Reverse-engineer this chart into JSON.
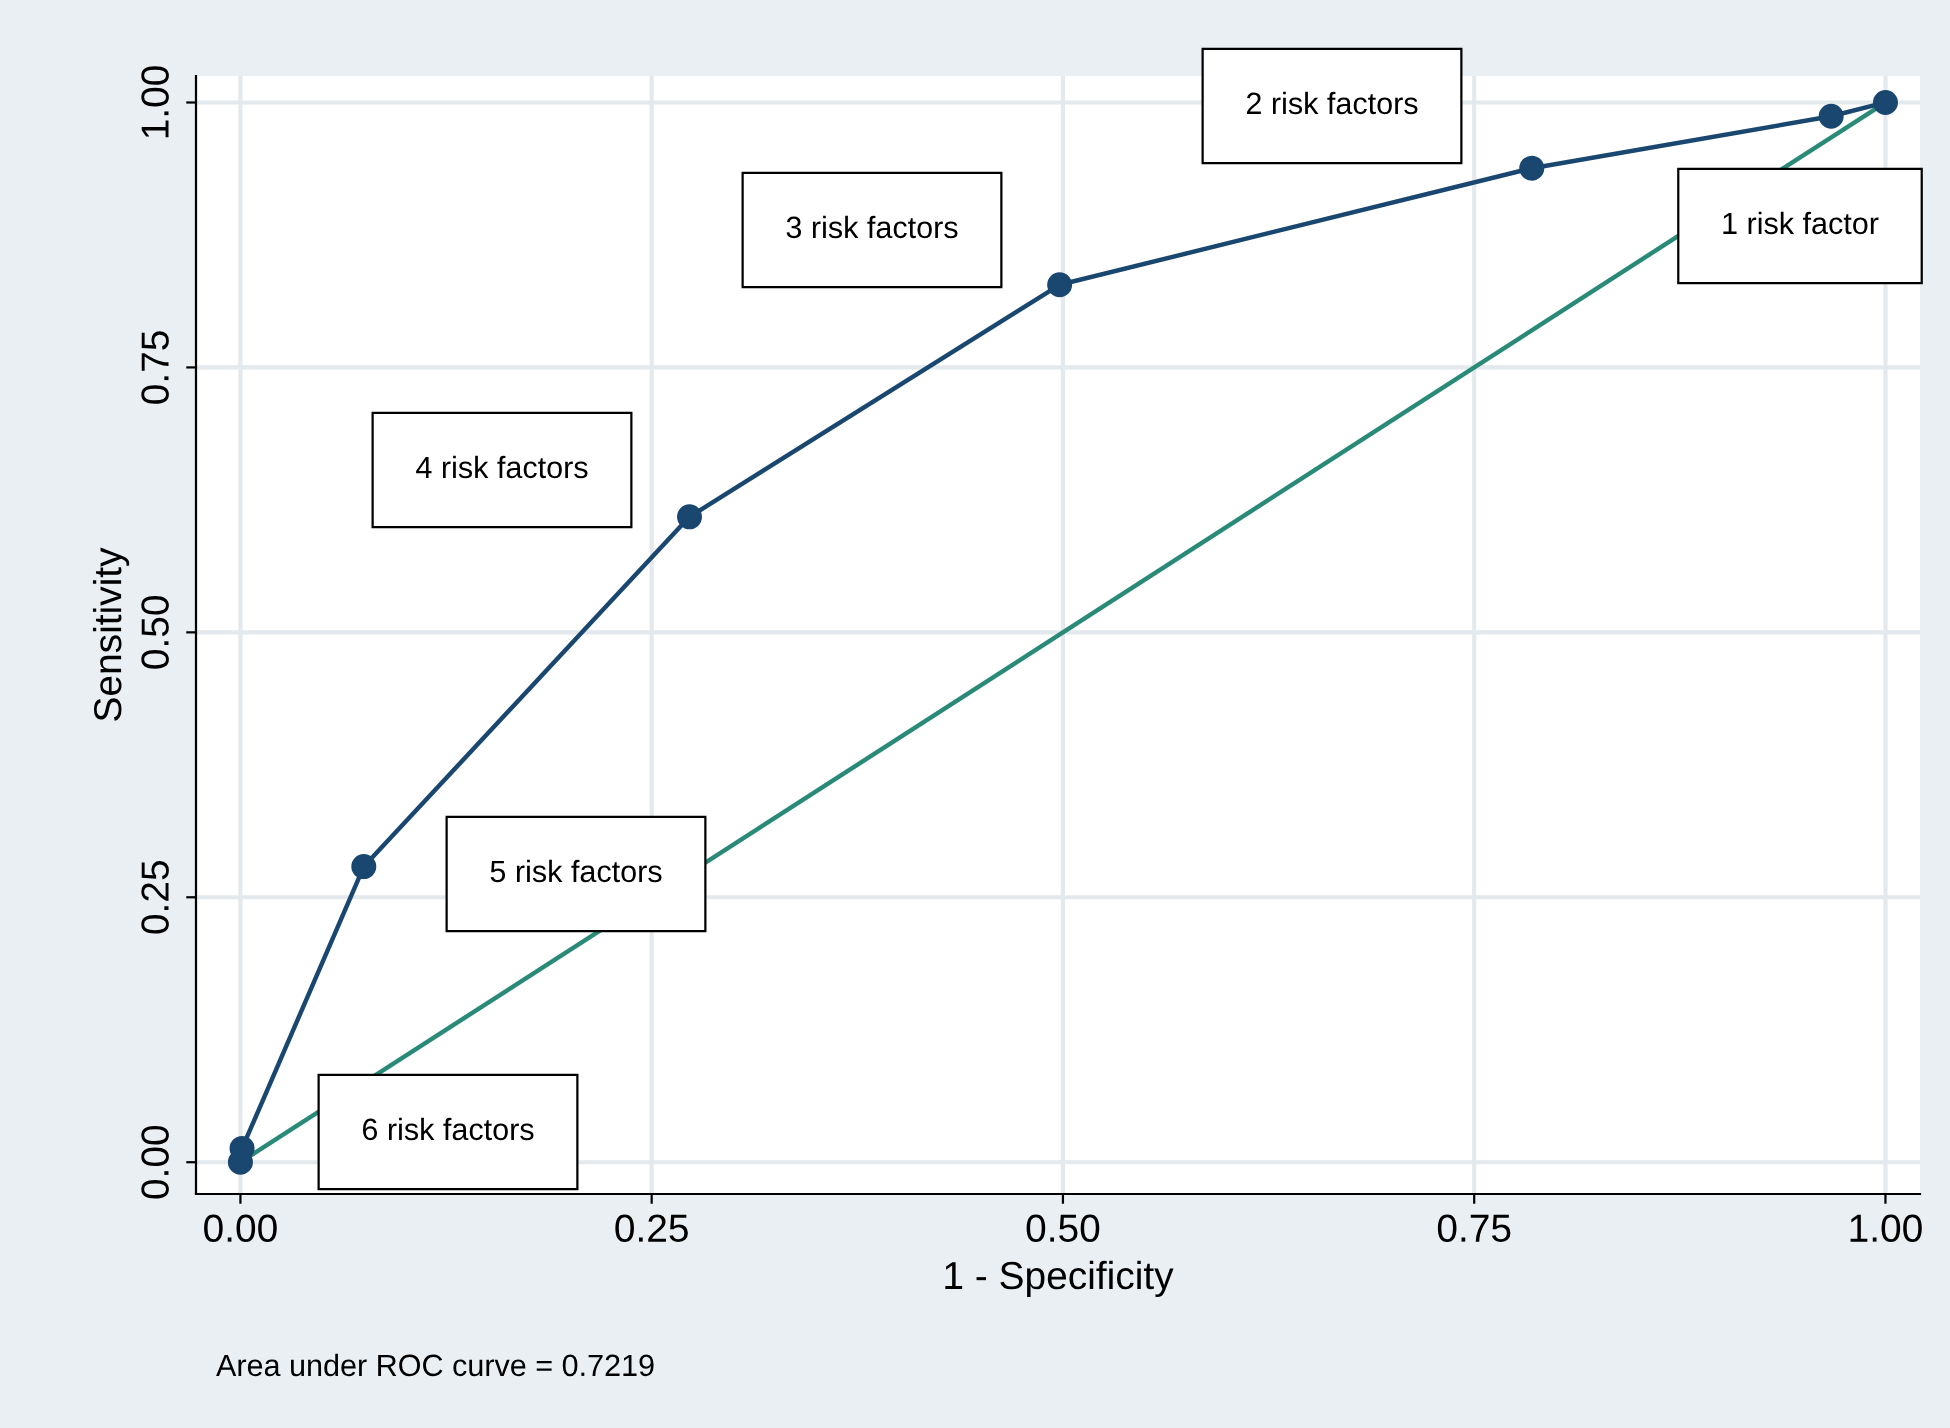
{
  "chart_data": {
    "type": "line",
    "xlabel": "1 - Specificity",
    "ylabel": "Sensitivity",
    "xlim": [
      -0.027,
      1.021
    ],
    "ylim": [
      -0.03,
      1.025
    ],
    "xticks": [
      {
        "value": 0,
        "label": "0.00"
      },
      {
        "value": 0.25,
        "label": "0.25"
      },
      {
        "value": 0.5,
        "label": "0.50"
      },
      {
        "value": 0.75,
        "label": "0.75"
      },
      {
        "value": 1,
        "label": "1.00"
      }
    ],
    "yticks": [
      {
        "value": 0,
        "label": "0.00"
      },
      {
        "value": 0.25,
        "label": "0.25"
      },
      {
        "value": 0.5,
        "label": "0.50"
      },
      {
        "value": 0.75,
        "label": "0.75"
      },
      {
        "value": 1,
        "label": "1.00"
      }
    ],
    "grid": true,
    "legend": false,
    "series": [
      {
        "color": "#1a476f",
        "marker": "circle",
        "x": [
          0,
          0.001,
          0.075,
          0.273,
          0.498,
          0.785,
          0.967,
          1
        ],
        "values": [
          0,
          0.013,
          0.279,
          0.609,
          0.828,
          0.938,
          0.987,
          1
        ]
      },
      {
        "color": "#2a8a78",
        "marker": "none",
        "x": [
          0,
          1
        ],
        "values": [
          0,
          1
        ]
      }
    ],
    "annotations": [
      "1 risk factor",
      "2 risk factors",
      "3 risk factors",
      "4 risk factors",
      "5 risk factors",
      "6 risk factors",
      "Area under ROC curve = 0.7219"
    ]
  }
}
